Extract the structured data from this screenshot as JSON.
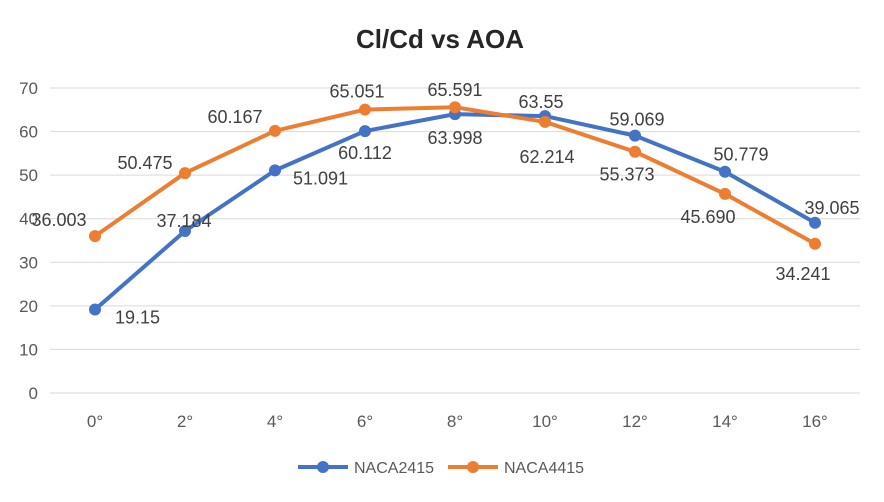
{
  "chart_data": {
    "type": "line",
    "title": "Cl/Cd vs AOA",
    "xlabel": "",
    "ylabel": "",
    "categories": [
      "0°",
      "2°",
      "4°",
      "6°",
      "8°",
      "10°",
      "12°",
      "14°",
      "16°"
    ],
    "ylim": [
      0,
      70
    ],
    "yticks": [
      "0",
      "10",
      "20",
      "30",
      "40",
      "50",
      "60",
      "70"
    ],
    "grid": true,
    "legend_position": "bottom",
    "series": [
      {
        "name": "NACA2415",
        "color": "#4472c4",
        "values": [
          19.15,
          37.184,
          51.091,
          60.112,
          63.998,
          63.55,
          59.069,
          50.779,
          39.065
        ],
        "labels": [
          "19.15",
          "37.184",
          "51.091",
          "60.112",
          "63.998",
          "63.55",
          "59.069",
          "50.779",
          "39.065"
        ]
      },
      {
        "name": "NACA4415",
        "color": "#ed7d31",
        "values": [
          36.003,
          50.475,
          60.167,
          65.051,
          65.591,
          62.214,
          55.373,
          45.69,
          34.241
        ],
        "labels": [
          "36.003",
          "50.475",
          "60.167",
          "65.051",
          "65.591",
          "62.214",
          "55.373",
          "45.690",
          "34.241"
        ]
      }
    ]
  }
}
